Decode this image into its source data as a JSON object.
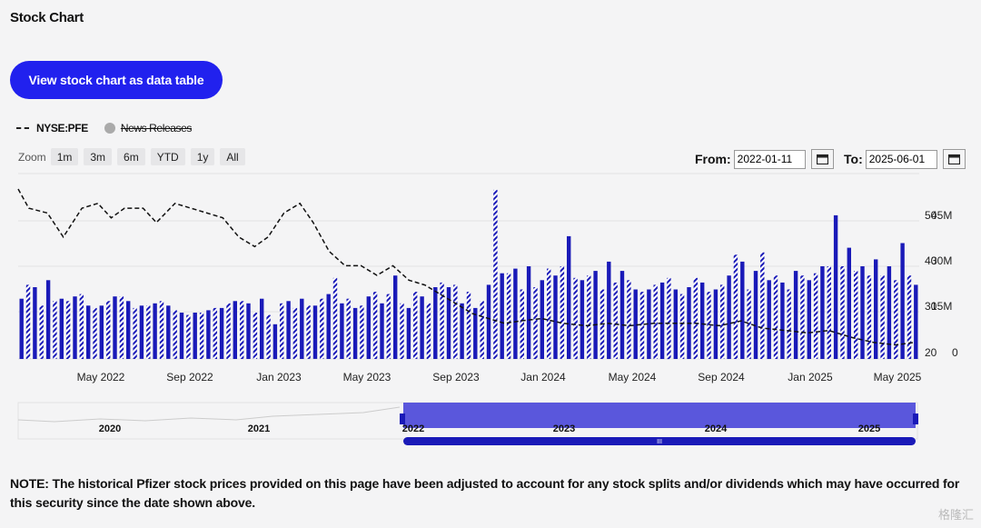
{
  "page": {
    "title": "Stock Chart",
    "table_button": "View stock chart as data table",
    "note": "NOTE: The historical Pfizer stock prices provided on this page have been adjusted to account for any stock splits and/or dividends which may have occurred for this security since the date shown above.",
    "watermark": "格隆汇"
  },
  "legend": {
    "series_label": "NYSE:PFE",
    "news_label": "News Releases"
  },
  "zoom": {
    "label": "Zoom",
    "buttons": [
      "1m",
      "3m",
      "6m",
      "YTD",
      "1y",
      "All"
    ]
  },
  "range": {
    "from_label": "From:",
    "from_value": "2022-01-11",
    "to_label": "To:",
    "to_value": "2025-06-01"
  },
  "icons": {
    "calendar": "calendar-icon"
  },
  "colors": {
    "accent": "#2121ee",
    "bar": "#1a1ab8",
    "line": "#111111",
    "navigator_fill": "#5a57dc"
  },
  "chart_data": {
    "type": "bar",
    "series": [
      {
        "name": "NYSE:PFE",
        "kind": "line",
        "points": [
          [
            2022.03,
            56
          ],
          [
            2022.07,
            52
          ],
          [
            2022.14,
            51
          ],
          [
            2022.2,
            46
          ],
          [
            2022.27,
            52
          ],
          [
            2022.33,
            53
          ],
          [
            2022.38,
            50
          ],
          [
            2022.43,
            52
          ],
          [
            2022.5,
            52
          ],
          [
            2022.55,
            49
          ],
          [
            2022.62,
            53
          ],
          [
            2022.68,
            52
          ],
          [
            2022.74,
            51
          ],
          [
            2022.8,
            50
          ],
          [
            2022.86,
            46
          ],
          [
            2022.92,
            44
          ],
          [
            2022.97,
            46
          ],
          [
            2023.03,
            51
          ],
          [
            2023.09,
            53
          ],
          [
            2023.14,
            49
          ],
          [
            2023.2,
            43
          ],
          [
            2023.26,
            40
          ],
          [
            2023.32,
            40
          ],
          [
            2023.38,
            38
          ],
          [
            2023.44,
            40
          ],
          [
            2023.5,
            37
          ],
          [
            2023.56,
            36
          ],
          [
            2023.62,
            34
          ],
          [
            2023.68,
            32
          ],
          [
            2023.74,
            30
          ],
          [
            2023.8,
            29
          ],
          [
            2023.86,
            28
          ],
          [
            2023.92,
            28.5
          ],
          [
            2024.0,
            29
          ],
          [
            2024.08,
            28
          ],
          [
            2024.17,
            27.5
          ],
          [
            2024.25,
            28
          ],
          [
            2024.33,
            27.5
          ],
          [
            2024.42,
            28
          ],
          [
            2024.5,
            28
          ],
          [
            2024.58,
            28
          ],
          [
            2024.67,
            27.5
          ],
          [
            2024.75,
            28.5
          ],
          [
            2024.83,
            27
          ],
          [
            2024.92,
            26.5
          ],
          [
            2025.0,
            26
          ],
          [
            2025.08,
            26.5
          ],
          [
            2025.17,
            25
          ],
          [
            2025.25,
            24
          ],
          [
            2025.33,
            23.5
          ],
          [
            2025.4,
            24
          ]
        ]
      },
      {
        "name": "Volume",
        "kind": "bar",
        "values": [
          26,
          32,
          31,
          23,
          34,
          25,
          26,
          25,
          27,
          28,
          23,
          22,
          23,
          25,
          27,
          27,
          25,
          22,
          23,
          23,
          24,
          25,
          23,
          21,
          20,
          19,
          20,
          20,
          21,
          22,
          22,
          24,
          25,
          25,
          24,
          20,
          26,
          19,
          15,
          24,
          25,
          22,
          26,
          23,
          23,
          26,
          28,
          35,
          24,
          26,
          22,
          23,
          27,
          29,
          24,
          28,
          36,
          24,
          22,
          29,
          27,
          24,
          31,
          33,
          31,
          32,
          24,
          29,
          22,
          25,
          32,
          73,
          37,
          37,
          39,
          30,
          40,
          31,
          34,
          39,
          36,
          40,
          53,
          35,
          34,
          36,
          38,
          30,
          42,
          33,
          38,
          34,
          30,
          29,
          30,
          32,
          33,
          35,
          30,
          28,
          31,
          35,
          33,
          29,
          30,
          32,
          36,
          45,
          42,
          30,
          38,
          46,
          34,
          36,
          33,
          30,
          38,
          36,
          34,
          37,
          40,
          40,
          62,
          40,
          48,
          38,
          40,
          36,
          43,
          36,
          40,
          34,
          50,
          36,
          32
        ]
      }
    ],
    "x_ticks": [
      "May 2022",
      "Sep 2022",
      "Jan 2023",
      "May 2023",
      "Sep 2023",
      "Jan 2024",
      "May 2024",
      "Sep 2024",
      "Jan 2025",
      "May 2025"
    ],
    "y_ticks_price": [
      "50",
      "40",
      "30",
      "20"
    ],
    "y_ticks_volume": [
      "45M",
      "30M",
      "15M",
      "0"
    ],
    "navigator": {
      "years": [
        "2020",
        "2021",
        "2022",
        "2023",
        "2024",
        "2025"
      ],
      "selected_range": [
        "2022-01-11",
        "2025-06-01"
      ],
      "scrollbar_label": "III"
    }
  }
}
